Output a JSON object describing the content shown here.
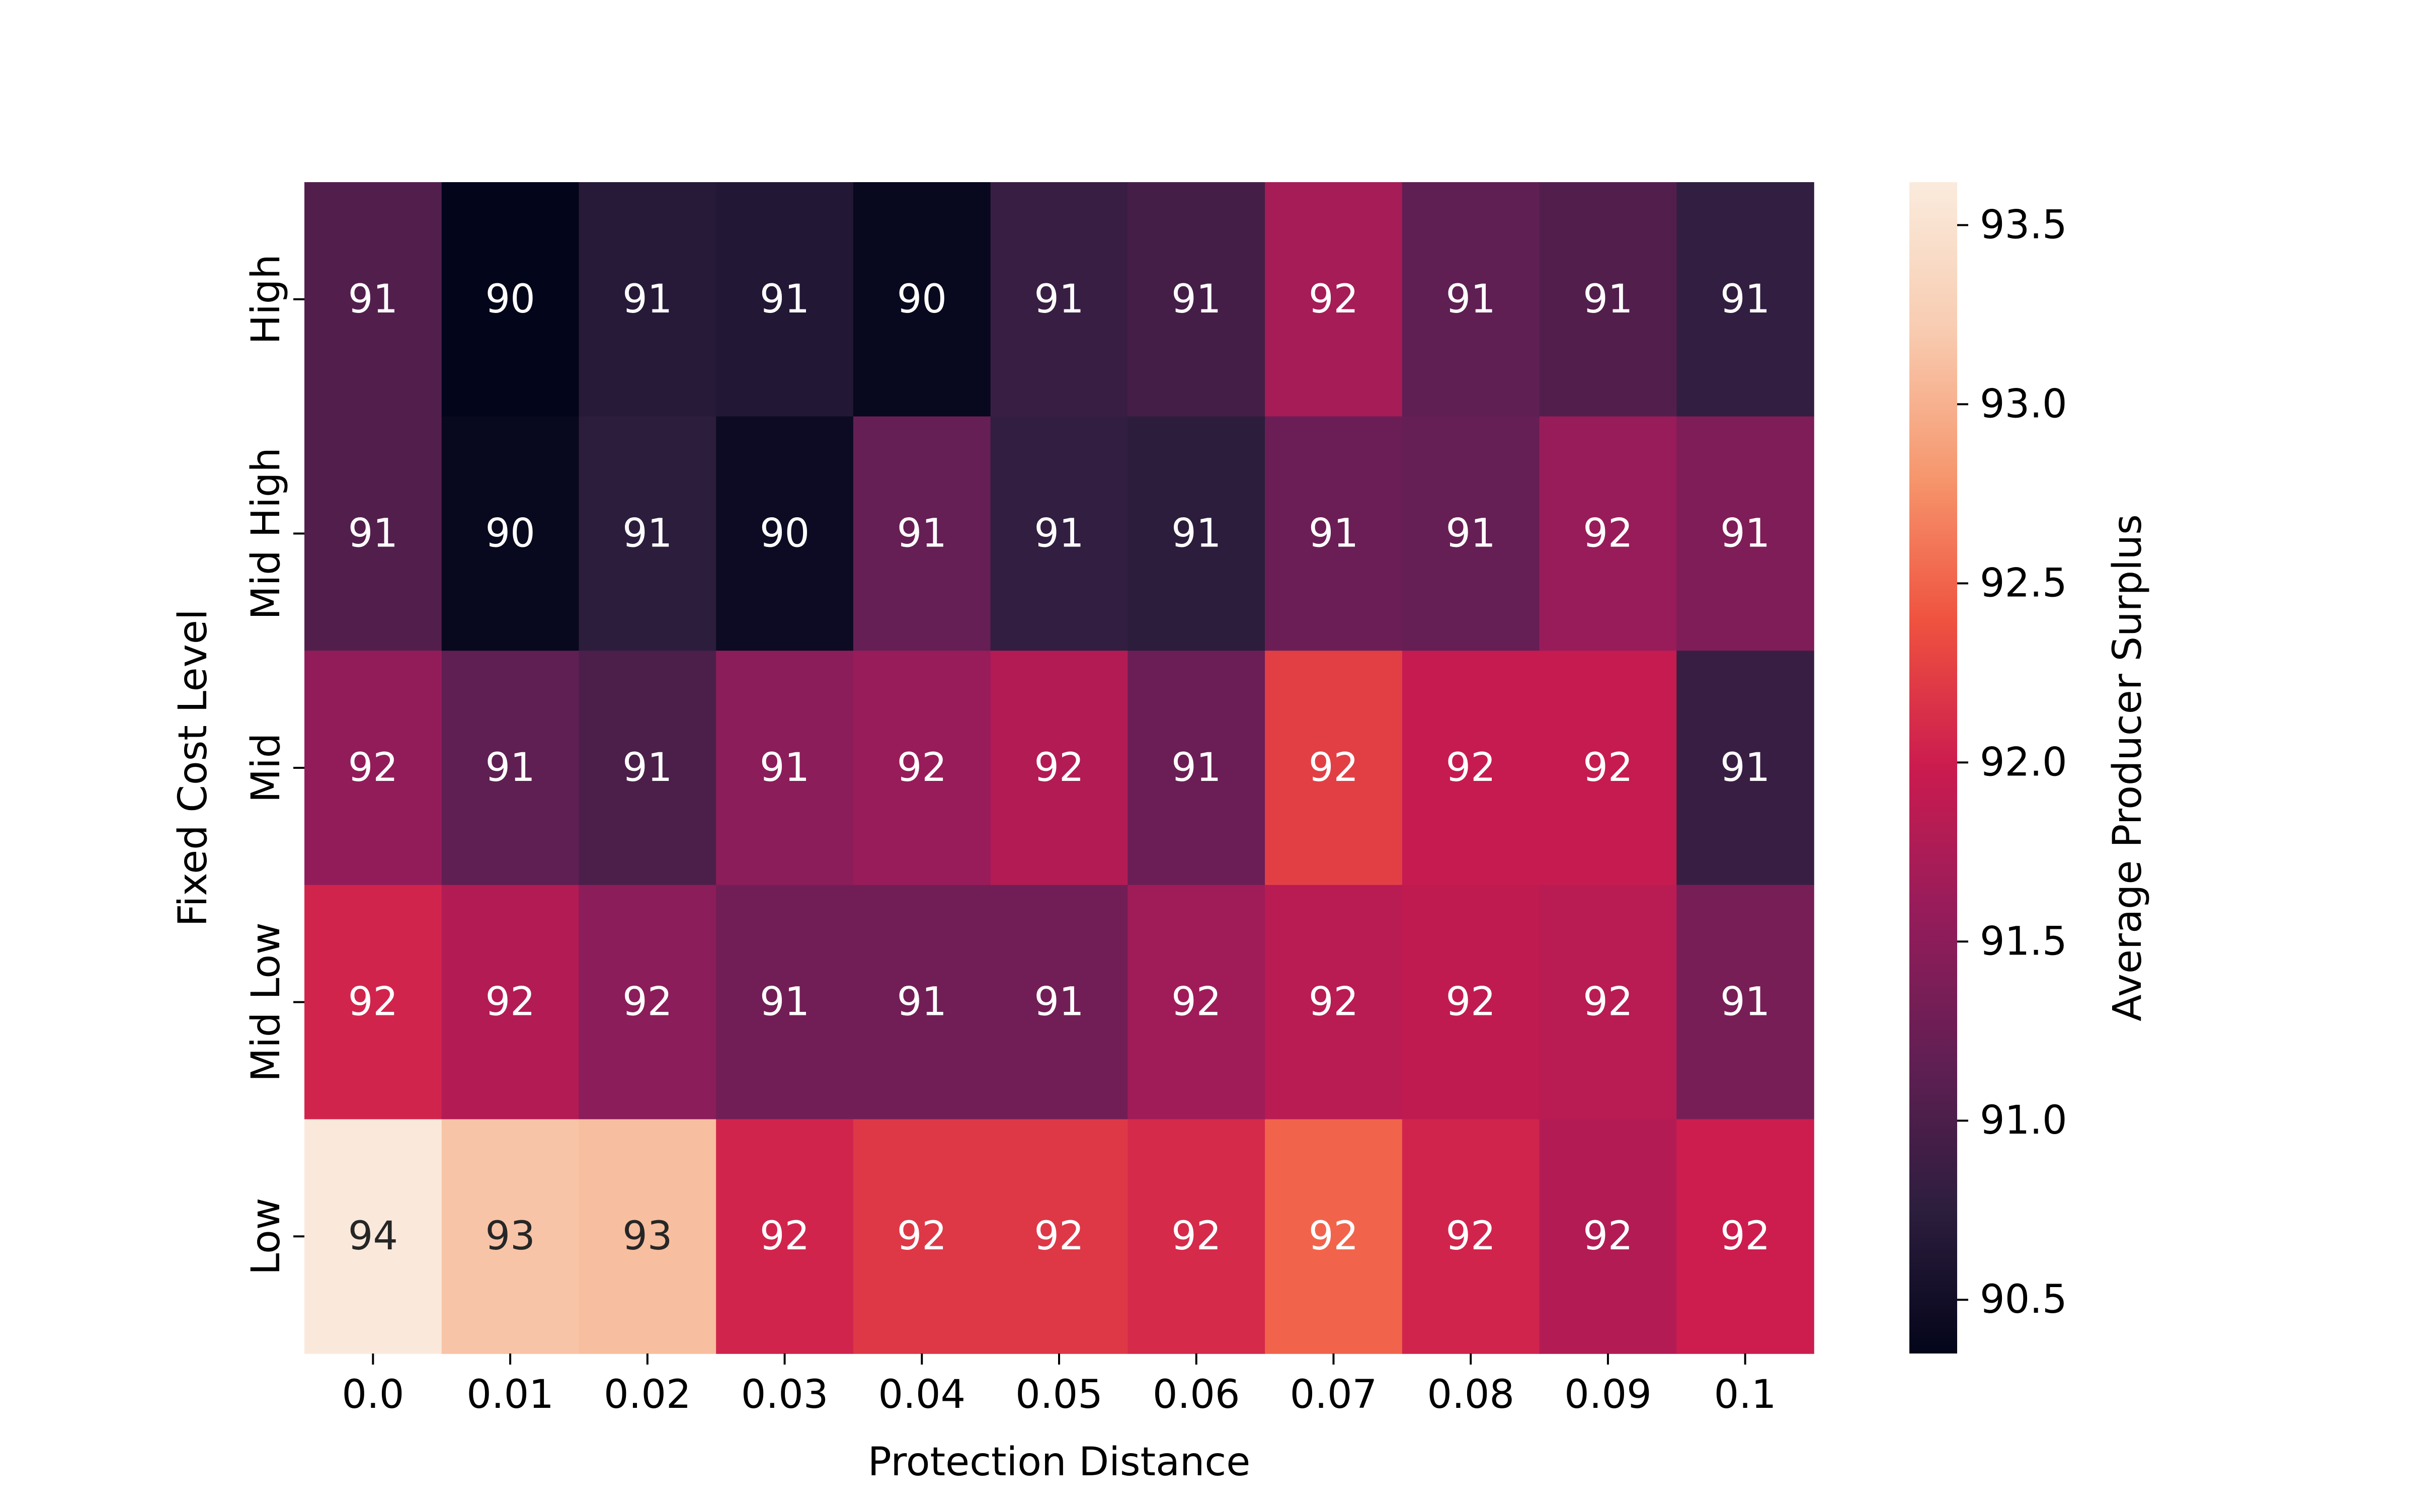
{
  "chart_data": {
    "type": "heatmap",
    "xlabel": "Protection Distance",
    "ylabel": "Fixed Cost Level",
    "x_categories": [
      "0.0",
      "0.01",
      "0.02",
      "0.03",
      "0.04",
      "0.05",
      "0.06",
      "0.07",
      "0.08",
      "0.09",
      "0.1"
    ],
    "y_categories": [
      "High",
      "Mid High",
      "Mid",
      "Mid Low",
      "Low"
    ],
    "values": [
      [
        91.05,
        90.35,
        90.7,
        90.65,
        90.4,
        90.85,
        90.95,
        91.7,
        91.15,
        91.05,
        90.8
      ],
      [
        91.05,
        90.4,
        90.75,
        90.45,
        91.2,
        90.8,
        90.75,
        91.25,
        91.2,
        91.6,
        91.4
      ],
      [
        91.55,
        91.15,
        91.0,
        91.5,
        91.6,
        91.8,
        91.25,
        92.25,
        91.95,
        91.95,
        90.85
      ],
      [
        92.05,
        91.8,
        91.5,
        91.3,
        91.3,
        91.3,
        91.65,
        91.85,
        91.9,
        91.85,
        91.35
      ],
      [
        93.6,
        93.15,
        93.1,
        92.05,
        92.2,
        92.2,
        92.1,
        92.5,
        92.05,
        91.8,
        92.0
      ]
    ],
    "annotations": [
      [
        "91",
        "90",
        "91",
        "91",
        "90",
        "91",
        "91",
        "92",
        "91",
        "91",
        "91"
      ],
      [
        "91",
        "90",
        "91",
        "90",
        "91",
        "91",
        "91",
        "91",
        "91",
        "92",
        "91"
      ],
      [
        "92",
        "91",
        "91",
        "91",
        "92",
        "92",
        "91",
        "92",
        "92",
        "92",
        "91"
      ],
      [
        "92",
        "92",
        "92",
        "91",
        "91",
        "91",
        "92",
        "92",
        "92",
        "92",
        "91"
      ],
      [
        "94",
        "93",
        "93",
        "92",
        "92",
        "92",
        "92",
        "92",
        "92",
        "92",
        "92"
      ]
    ],
    "colorbar": {
      "label": "Average Producer Surplus",
      "min": 90.35,
      "max": 93.62,
      "ticks": [
        90.5,
        91.0,
        91.5,
        92.0,
        92.5,
        93.0,
        93.5
      ],
      "tick_labels": [
        "90.5",
        "91.0",
        "91.5",
        "92.0",
        "92.5",
        "93.0",
        "93.5"
      ],
      "colormap": "rocket",
      "colormap_stops": [
        "#03051a",
        "#2d1e3e",
        "#611f53",
        "#951c5b",
        "#cb1b4f",
        "#ef523f",
        "#f6976e",
        "#f8ccb1",
        "#faebdd"
      ]
    },
    "grid": false,
    "annotation_text_light": "#ffffff",
    "annotation_text_dark": "#262626"
  }
}
